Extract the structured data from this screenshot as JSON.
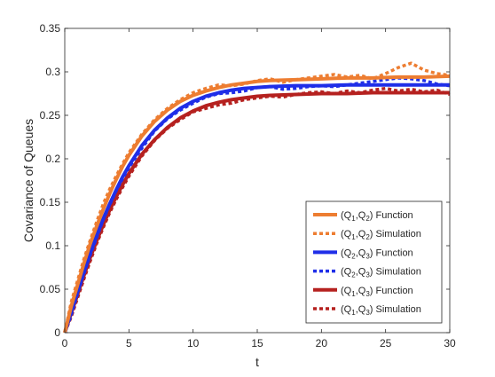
{
  "chart_data": {
    "type": "line",
    "title": "",
    "xlabel": "t",
    "ylabel": "Covariance of Queues",
    "xlim": [
      0,
      30
    ],
    "ylim": [
      0,
      0.35
    ],
    "xticks": [
      0,
      5,
      10,
      15,
      20,
      25,
      30
    ],
    "xtick_labels": [
      "0",
      "5",
      "10",
      "15",
      "20",
      "25",
      "30"
    ],
    "yticks": [
      0,
      0.05,
      0.1,
      0.15,
      0.2,
      0.25,
      0.3,
      0.35
    ],
    "ytick_labels": [
      "0",
      "0.05",
      "0.1",
      "0.15",
      "0.2",
      "0.25",
      "0.3",
      "0.35"
    ],
    "grid": false,
    "box": true,
    "legend_position": "bottom-right",
    "series": [
      {
        "name": "(Q1,Q2) Function",
        "name_parts": {
          "open": "(Q",
          "sub1": "1",
          "mid": ",Q",
          "sub2": "2",
          "close": ") Function"
        },
        "style": "solid",
        "color": "#ED7D31",
        "x": [
          0,
          0.5,
          1,
          1.5,
          2,
          2.5,
          3,
          3.5,
          4,
          4.5,
          5,
          6,
          7,
          8,
          9,
          10,
          11,
          12,
          13,
          14,
          15,
          16,
          18,
          20,
          22,
          24,
          26,
          28,
          30
        ],
        "y": [
          0,
          0.03,
          0.055,
          0.08,
          0.103,
          0.123,
          0.142,
          0.16,
          0.176,
          0.191,
          0.204,
          0.226,
          0.243,
          0.256,
          0.266,
          0.273,
          0.278,
          0.282,
          0.285,
          0.287,
          0.289,
          0.29,
          0.291,
          0.292,
          0.293,
          0.293,
          0.294,
          0.294,
          0.295
        ]
      },
      {
        "name": "(Q1,Q2) Simulation",
        "name_parts": {
          "open": "(Q",
          "sub1": "1",
          "mid": ",Q",
          "sub2": "2",
          "close": ") Simulation"
        },
        "style": "dotted",
        "color": "#ED7D31",
        "x": [
          0,
          0.5,
          1,
          1.5,
          2,
          2.5,
          3,
          3.5,
          4,
          4.5,
          5,
          6,
          7,
          8,
          9,
          10,
          11,
          12,
          13,
          14,
          15,
          16,
          17,
          18,
          19,
          20,
          21,
          22,
          23,
          24,
          25,
          26,
          27,
          28,
          29,
          30
        ],
        "y": [
          0,
          0.035,
          0.06,
          0.085,
          0.107,
          0.128,
          0.148,
          0.165,
          0.18,
          0.194,
          0.207,
          0.228,
          0.245,
          0.258,
          0.268,
          0.276,
          0.281,
          0.285,
          0.284,
          0.286,
          0.29,
          0.292,
          0.288,
          0.291,
          0.293,
          0.295,
          0.297,
          0.294,
          0.296,
          0.292,
          0.298,
          0.305,
          0.31,
          0.302,
          0.298,
          0.296
        ]
      },
      {
        "name": "(Q2,Q3) Function",
        "name_parts": {
          "open": "(Q",
          "sub1": "2",
          "mid": ",Q",
          "sub2": "3",
          "close": ") Function"
        },
        "style": "solid",
        "color": "#1F2EE8",
        "x": [
          0,
          0.5,
          1,
          1.5,
          2,
          2.5,
          3,
          3.5,
          4,
          4.5,
          5,
          6,
          7,
          8,
          9,
          10,
          11,
          12,
          13,
          14,
          15,
          16,
          18,
          20,
          22,
          24,
          26,
          28,
          30
        ],
        "y": [
          0,
          0.024,
          0.047,
          0.07,
          0.092,
          0.112,
          0.131,
          0.148,
          0.164,
          0.179,
          0.192,
          0.215,
          0.233,
          0.247,
          0.258,
          0.266,
          0.272,
          0.276,
          0.279,
          0.281,
          0.282,
          0.283,
          0.284,
          0.284,
          0.285,
          0.285,
          0.285,
          0.285,
          0.285
        ]
      },
      {
        "name": "(Q2,Q3) Simulation",
        "name_parts": {
          "open": "(Q",
          "sub1": "2",
          "mid": ",Q",
          "sub2": "3",
          "close": ") Simulation"
        },
        "style": "dotted",
        "color": "#1F2EE8",
        "x": [
          0,
          0.5,
          1,
          1.5,
          2,
          2.5,
          3,
          3.5,
          4,
          4.5,
          5,
          6,
          7,
          8,
          9,
          10,
          11,
          12,
          13,
          14,
          15,
          16,
          17,
          18,
          19,
          20,
          21,
          22,
          23,
          24,
          25,
          26,
          27,
          28,
          29,
          30
        ],
        "y": [
          0,
          0.02,
          0.045,
          0.068,
          0.09,
          0.11,
          0.13,
          0.147,
          0.163,
          0.177,
          0.19,
          0.212,
          0.232,
          0.246,
          0.256,
          0.264,
          0.271,
          0.275,
          0.276,
          0.278,
          0.282,
          0.283,
          0.28,
          0.281,
          0.283,
          0.284,
          0.283,
          0.285,
          0.287,
          0.289,
          0.291,
          0.293,
          0.292,
          0.29,
          0.286,
          0.284
        ]
      },
      {
        "name": "(Q1,Q3) Function",
        "name_parts": {
          "open": "(Q",
          "sub1": "1",
          "mid": ",Q",
          "sub2": "3",
          "close": ") Function"
        },
        "style": "solid",
        "color": "#B5211F",
        "x": [
          0,
          0.5,
          1,
          1.5,
          2,
          2.5,
          3,
          3.5,
          4,
          4.5,
          5,
          6,
          7,
          8,
          9,
          10,
          11,
          12,
          13,
          14,
          15,
          16,
          18,
          20,
          22,
          24,
          26,
          28,
          30
        ],
        "y": [
          0,
          0.022,
          0.044,
          0.066,
          0.087,
          0.106,
          0.124,
          0.141,
          0.156,
          0.17,
          0.183,
          0.205,
          0.222,
          0.236,
          0.247,
          0.255,
          0.261,
          0.265,
          0.268,
          0.27,
          0.272,
          0.273,
          0.274,
          0.275,
          0.275,
          0.276,
          0.276,
          0.276,
          0.276
        ]
      },
      {
        "name": "(Q1,Q3) Simulation",
        "name_parts": {
          "open": "(Q",
          "sub1": "1",
          "mid": ",Q",
          "sub2": "3",
          "close": ") Simulation"
        },
        "style": "dotted",
        "color": "#B5211F",
        "x": [
          0,
          0.5,
          1,
          1.5,
          2,
          2.5,
          3,
          3.5,
          4,
          4.5,
          5,
          6,
          7,
          8,
          9,
          10,
          11,
          12,
          13,
          14,
          15,
          16,
          17,
          18,
          19,
          20,
          21,
          22,
          23,
          24,
          25,
          26,
          27,
          28,
          29,
          30
        ],
        "y": [
          0,
          0.018,
          0.04,
          0.062,
          0.083,
          0.103,
          0.121,
          0.138,
          0.153,
          0.167,
          0.18,
          0.203,
          0.221,
          0.235,
          0.245,
          0.254,
          0.258,
          0.262,
          0.264,
          0.268,
          0.27,
          0.272,
          0.271,
          0.274,
          0.276,
          0.277,
          0.275,
          0.278,
          0.276,
          0.279,
          0.281,
          0.278,
          0.28,
          0.277,
          0.279,
          0.274
        ]
      }
    ]
  }
}
